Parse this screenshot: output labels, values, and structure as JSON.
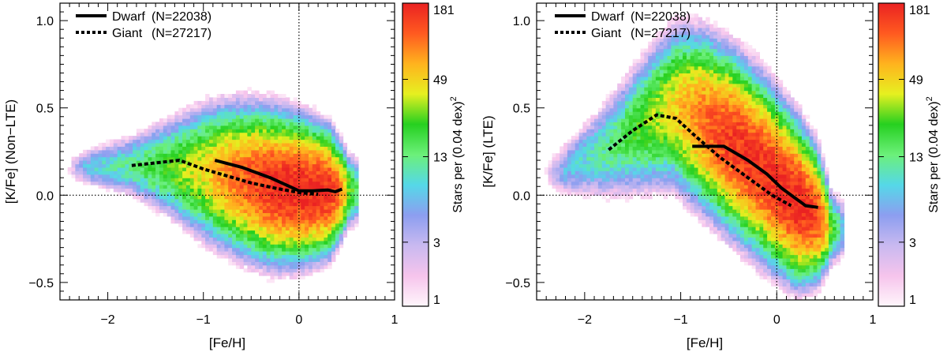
{
  "colorbar": {
    "label": "Stars per (0.04 dex)",
    "label_exponent": "2",
    "ticks": [
      1,
      3,
      13,
      49,
      181
    ],
    "range": [
      1,
      181
    ],
    "scale": "log",
    "colormap": [
      "#fff6fb",
      "#f6c4ec",
      "#c9b9f0",
      "#8c9ef0",
      "#55d8e8",
      "#6cf07a",
      "#26d020",
      "#e6f020",
      "#ffb31e",
      "#ff5a20",
      "#ea2222"
    ]
  },
  "panels": [
    {
      "id": "nlte",
      "xlabel": "[Fe/H]",
      "ylabel": "[K/Fe] (Non−LTE)",
      "xlim": [
        -2.5,
        1.0
      ],
      "ylim": [
        -0.6,
        1.1
      ],
      "xticks": [
        -2,
        -1,
        0,
        1
      ],
      "xtick_labels": [
        "−2",
        "−1",
        "0",
        "1"
      ],
      "yticks": [
        -0.5,
        0.0,
        0.5,
        1.0
      ],
      "ytick_labels": [
        "−0.5",
        "0.0",
        "0.5",
        "1.0"
      ],
      "legend": [
        {
          "name": "Dwarf",
          "label": "(N=22038)",
          "style": "solid"
        },
        {
          "name": "Giant",
          "label": "(N=27217)",
          "style": "dotted"
        }
      ]
    },
    {
      "id": "lte",
      "xlabel": "[Fe/H]",
      "ylabel": "[K/Fe] (LTE)",
      "xlim": [
        -2.5,
        1.0
      ],
      "ylim": [
        -0.6,
        1.1
      ],
      "xticks": [
        -2,
        -1,
        0,
        1
      ],
      "xtick_labels": [
        "−2",
        "−1",
        "0",
        "1"
      ],
      "yticks": [
        -0.5,
        0.0,
        0.5,
        1.0
      ],
      "ytick_labels": [
        "−0.5",
        "0.0",
        "0.5",
        "1.0"
      ],
      "legend": [
        {
          "name": "Dwarf",
          "label": "(N=22038)",
          "style": "solid"
        },
        {
          "name": "Giant",
          "label": "(N=27217)",
          "style": "dotted"
        }
      ]
    }
  ],
  "chart_data": [
    {
      "type": "heatmap",
      "title": "",
      "xlabel": "[Fe/H]",
      "ylabel": "[K/Fe] (Non−LTE)",
      "xlim": [
        -2.5,
        1.0
      ],
      "ylim": [
        -0.6,
        1.1
      ],
      "reference_lines": {
        "x": 0.0,
        "y": 0.0
      },
      "density_ridge": [
        [
          -2.3,
          0.15
        ],
        [
          -1.8,
          0.16
        ],
        [
          -1.4,
          0.15
        ],
        [
          -1.0,
          0.12
        ],
        [
          -0.6,
          0.08
        ],
        [
          -0.3,
          0.04
        ],
        [
          0.0,
          0.02
        ],
        [
          0.3,
          0.01
        ],
        [
          0.5,
          0.02
        ]
      ],
      "density_halfwidth": [
        [
          -2.3,
          0.05
        ],
        [
          -1.8,
          0.08
        ],
        [
          -1.4,
          0.12
        ],
        [
          -1.0,
          0.16
        ],
        [
          -0.6,
          0.17
        ],
        [
          -0.3,
          0.17
        ],
        [
          0.0,
          0.16
        ],
        [
          0.3,
          0.14
        ],
        [
          0.5,
          0.09
        ]
      ],
      "density_peak": [
        [
          -2.3,
          6
        ],
        [
          -1.8,
          12
        ],
        [
          -1.4,
          22
        ],
        [
          -1.0,
          45
        ],
        [
          -0.6,
          110
        ],
        [
          -0.3,
          165
        ],
        [
          0.0,
          181
        ],
        [
          0.3,
          160
        ],
        [
          0.5,
          40
        ]
      ],
      "series": [
        {
          "name": "Dwarf (N=22038)",
          "style": "solid",
          "x": [
            -0.88,
            -0.6,
            -0.3,
            -0.1,
            0.0,
            0.15,
            0.3,
            0.38,
            0.45
          ],
          "y": [
            0.2,
            0.16,
            0.1,
            0.05,
            0.025,
            0.025,
            0.03,
            0.02,
            0.035
          ]
        },
        {
          "name": "Giant (N=27217)",
          "style": "dotted",
          "x": [
            -1.75,
            -1.5,
            -1.25,
            -1.0,
            -0.75,
            -0.5,
            -0.25,
            0.0,
            0.2
          ],
          "y": [
            0.17,
            0.185,
            0.2,
            0.15,
            0.11,
            0.07,
            0.04,
            0.015,
            0.005
          ]
        }
      ]
    },
    {
      "type": "heatmap",
      "title": "",
      "xlabel": "[Fe/H]",
      "ylabel": "[K/Fe] (LTE)",
      "xlim": [
        -2.5,
        1.0
      ],
      "ylim": [
        -0.6,
        1.1
      ],
      "reference_lines": {
        "x": 0.0,
        "y": 0.0
      },
      "density_ridge": [
        [
          -2.3,
          0.12
        ],
        [
          -1.8,
          0.25
        ],
        [
          -1.4,
          0.4
        ],
        [
          -1.1,
          0.5
        ],
        [
          -0.8,
          0.42
        ],
        [
          -0.5,
          0.3
        ],
        [
          -0.2,
          0.16
        ],
        [
          0.0,
          0.05
        ],
        [
          0.2,
          -0.05
        ],
        [
          0.4,
          -0.12
        ],
        [
          0.55,
          -0.2
        ]
      ],
      "density_halfwidth": [
        [
          -2.3,
          0.07
        ],
        [
          -1.8,
          0.13
        ],
        [
          -1.4,
          0.17
        ],
        [
          -1.1,
          0.19
        ],
        [
          -0.8,
          0.2
        ],
        [
          -0.5,
          0.2
        ],
        [
          -0.2,
          0.2
        ],
        [
          0.0,
          0.19
        ],
        [
          0.2,
          0.18
        ],
        [
          0.4,
          0.15
        ],
        [
          0.55,
          0.09
        ]
      ],
      "density_peak": [
        [
          -2.3,
          5
        ],
        [
          -1.8,
          12
        ],
        [
          -1.4,
          25
        ],
        [
          -1.1,
          45
        ],
        [
          -0.8,
          95
        ],
        [
          -0.5,
          150
        ],
        [
          -0.2,
          160
        ],
        [
          0.0,
          170
        ],
        [
          0.2,
          181
        ],
        [
          0.4,
          130
        ],
        [
          0.55,
          30
        ]
      ],
      "series": [
        {
          "name": "Dwarf (N=22038)",
          "style": "solid",
          "x": [
            -0.88,
            -0.55,
            -0.3,
            -0.1,
            0.05,
            0.2,
            0.3,
            0.43
          ],
          "y": [
            0.28,
            0.28,
            0.2,
            0.12,
            0.04,
            -0.02,
            -0.06,
            -0.07
          ]
        },
        {
          "name": "Giant (N=27217)",
          "style": "dotted",
          "x": [
            -1.75,
            -1.5,
            -1.25,
            -1.05,
            -0.85,
            -0.6,
            -0.3,
            -0.05,
            0.15
          ],
          "y": [
            0.26,
            0.37,
            0.46,
            0.44,
            0.34,
            0.22,
            0.1,
            0.0,
            -0.06
          ]
        }
      ]
    }
  ]
}
